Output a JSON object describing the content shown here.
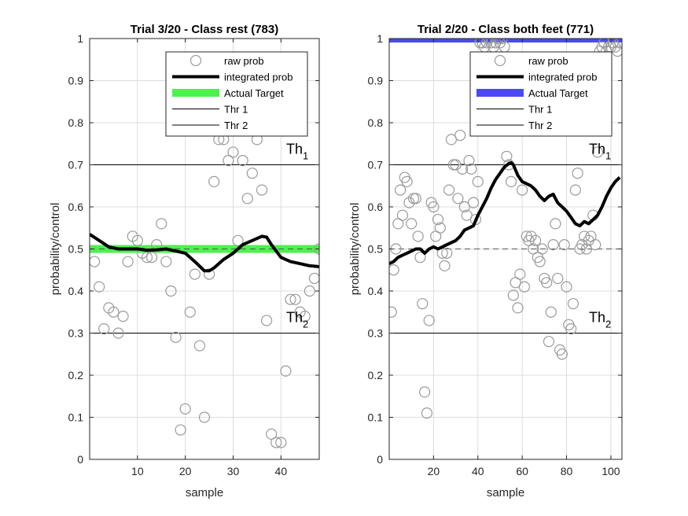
{
  "chart_data": [
    {
      "type": "scatter",
      "title": "Trial 3/20 - Class rest (783)",
      "xlabel": "sample",
      "ylabel": "probability/control",
      "xlim": [
        0,
        48
      ],
      "ylim": [
        0,
        1
      ],
      "xticks": [
        10,
        20,
        30,
        40
      ],
      "yticks": [
        0,
        0.1,
        0.2,
        0.3,
        0.4,
        0.5,
        0.6,
        0.7,
        0.8,
        0.9,
        1
      ],
      "grid": true,
      "legend_position": "top-right",
      "legend": [
        "raw prob",
        "integrated prob",
        "Actual Target",
        "Thr 1",
        "Thr 2"
      ],
      "target_level": 0.5,
      "target_color": "#4df04d",
      "chance_line": 0.5,
      "thresholds": [
        {
          "label": "Th",
          "sub": "1",
          "value": 0.7
        },
        {
          "label": "Th",
          "sub": "2",
          "value": 0.3
        }
      ],
      "raw_prob": {
        "x": [
          1,
          2,
          3,
          4,
          5,
          6,
          7,
          8,
          9,
          10,
          11,
          12,
          13,
          14,
          15,
          16,
          17,
          18,
          19,
          20,
          21,
          22,
          23,
          24,
          25,
          26,
          27,
          28,
          29,
          30,
          31,
          32,
          33,
          34,
          35,
          36,
          37,
          38,
          39,
          40,
          41,
          42,
          43,
          44,
          45,
          46,
          47,
          48
        ],
        "y": [
          0.47,
          0.41,
          0.31,
          0.36,
          0.35,
          0.3,
          0.34,
          0.47,
          0.53,
          0.52,
          0.49,
          0.48,
          0.48,
          0.51,
          0.56,
          0.47,
          0.4,
          0.29,
          0.07,
          0.12,
          0.35,
          0.44,
          0.27,
          0.1,
          0.44,
          0.66,
          0.76,
          0.76,
          0.71,
          0.73,
          0.52,
          0.71,
          0.62,
          0.68,
          0.76,
          0.64,
          0.33,
          0.06,
          0.04,
          0.04,
          0.21,
          0.38,
          0.38,
          0.35,
          0.34,
          0.4,
          0.43,
          0.5
        ]
      },
      "integrated_prob": {
        "x": [
          0,
          2,
          4,
          6,
          8,
          10,
          12,
          14,
          16,
          18,
          20,
          22,
          24,
          25,
          26,
          28,
          30,
          32,
          34,
          36,
          37,
          38,
          40,
          42,
          44,
          46,
          48
        ],
        "y": [
          0.535,
          0.52,
          0.505,
          0.5,
          0.5,
          0.5,
          0.497,
          0.498,
          0.5,
          0.495,
          0.49,
          0.47,
          0.448,
          0.448,
          0.455,
          0.475,
          0.49,
          0.51,
          0.52,
          0.53,
          0.528,
          0.51,
          0.48,
          0.47,
          0.465,
          0.46,
          0.458
        ]
      }
    },
    {
      "type": "scatter",
      "title": "Trial 2/20 - Class both feet (771)",
      "xlabel": "sample",
      "ylabel": "probability/control",
      "xlim": [
        0,
        105
      ],
      "ylim": [
        0,
        1
      ],
      "xticks": [
        20,
        40,
        60,
        80,
        100
      ],
      "yticks": [
        0,
        0.1,
        0.2,
        0.3,
        0.4,
        0.5,
        0.6,
        0.7,
        0.8,
        0.9,
        1
      ],
      "grid": true,
      "legend_position": "top-right",
      "legend": [
        "raw prob",
        "integrated prob",
        "Actual Target",
        "Thr 1",
        "Thr 2"
      ],
      "target_level": 1.0,
      "target_color": "#4a4af0",
      "chance_line": 0.5,
      "thresholds": [
        {
          "label": "Th",
          "sub": "1",
          "value": 0.7
        },
        {
          "label": "Th",
          "sub": "2",
          "value": 0.3
        }
      ],
      "raw_prob": {
        "x": [
          1,
          2,
          3,
          4,
          5,
          6,
          7,
          8,
          9,
          10,
          11,
          12,
          13,
          14,
          15,
          16,
          17,
          18,
          19,
          20,
          21,
          22,
          23,
          24,
          25,
          26,
          27,
          28,
          29,
          30,
          31,
          32,
          33,
          34,
          35,
          36,
          37,
          38,
          39,
          40,
          41,
          42,
          43,
          44,
          45,
          46,
          47,
          48,
          49,
          50,
          51,
          52,
          53,
          54,
          55,
          56,
          57,
          58,
          59,
          60,
          61,
          62,
          63,
          64,
          65,
          66,
          67,
          68,
          69,
          70,
          71,
          72,
          73,
          74,
          75,
          76,
          77,
          78,
          79,
          80,
          81,
          82,
          83,
          84,
          85,
          86,
          87,
          88,
          89,
          90,
          91,
          92,
          93,
          94,
          95,
          96,
          97,
          98,
          99,
          100,
          101,
          102,
          103,
          104
        ],
        "y": [
          0.35,
          0.45,
          0.5,
          0.56,
          0.64,
          0.58,
          0.67,
          0.66,
          0.61,
          0.56,
          0.62,
          0.62,
          0.53,
          0.48,
          0.37,
          0.16,
          0.11,
          0.33,
          0.61,
          0.6,
          0.53,
          0.57,
          0.55,
          0.49,
          0.46,
          0.49,
          0.64,
          0.76,
          0.7,
          0.7,
          0.62,
          0.77,
          0.69,
          0.6,
          0.58,
          0.71,
          0.69,
          0.61,
          0.57,
          0.66,
          0.99,
          0.99,
          0.98,
          0.99,
          1.0,
          0.99,
          0.98,
          0.99,
          1.0,
          0.99,
          1.0,
          0.98,
          0.72,
          0.7,
          0.66,
          0.39,
          0.42,
          0.36,
          0.44,
          0.64,
          0.41,
          0.53,
          0.52,
          0.53,
          0.5,
          0.52,
          0.48,
          0.47,
          0.5,
          0.43,
          0.42,
          0.28,
          0.35,
          0.51,
          0.56,
          0.43,
          0.26,
          0.25,
          0.51,
          0.41,
          0.32,
          0.31,
          0.37,
          0.64,
          0.68,
          0.5,
          0.51,
          0.53,
          0.5,
          0.52,
          0.53,
          0.58,
          0.51,
          0.73,
          0.97,
          0.98,
          0.99,
          0.97,
          0.98,
          0.98,
          0.99,
          0.98,
          0.97,
          0.99
        ]
      },
      "integrated_prob": {
        "x": [
          0,
          2,
          4,
          6,
          8,
          10,
          12,
          14,
          16,
          18,
          20,
          22,
          24,
          26,
          28,
          30,
          32,
          34,
          36,
          38,
          40,
          42,
          44,
          46,
          48,
          50,
          52,
          54,
          55,
          56,
          58,
          60,
          62,
          64,
          66,
          68,
          70,
          72,
          74,
          76,
          78,
          80,
          82,
          84,
          86,
          88,
          90,
          92,
          94,
          96,
          98,
          100,
          102,
          104
        ],
        "y": [
          0.465,
          0.47,
          0.48,
          0.485,
          0.49,
          0.495,
          0.5,
          0.5,
          0.49,
          0.5,
          0.505,
          0.5,
          0.505,
          0.51,
          0.515,
          0.52,
          0.53,
          0.545,
          0.55,
          0.555,
          0.58,
          0.6,
          0.62,
          0.645,
          0.665,
          0.68,
          0.695,
          0.703,
          0.705,
          0.7,
          0.675,
          0.66,
          0.655,
          0.65,
          0.64,
          0.625,
          0.615,
          0.625,
          0.63,
          0.61,
          0.6,
          0.59,
          0.575,
          0.56,
          0.555,
          0.565,
          0.56,
          0.57,
          0.58,
          0.6,
          0.625,
          0.645,
          0.66,
          0.67
        ]
      }
    }
  ]
}
